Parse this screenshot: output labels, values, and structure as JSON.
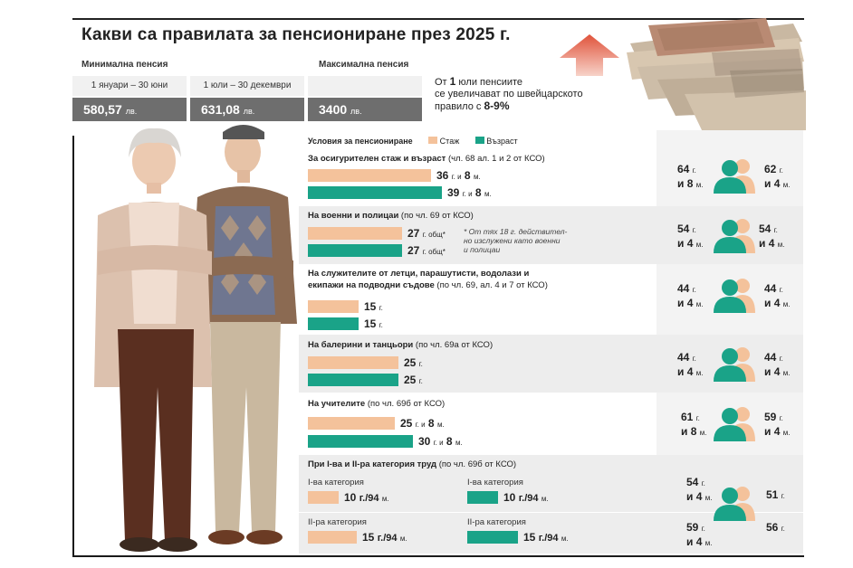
{
  "title": "Какви са правилата за пенсиониране през 2025 г.",
  "min_pension": {
    "label": "Минимална пенсия",
    "periods": [
      {
        "period": "1 януари – 30 юни",
        "value": "580,57",
        "unit": "лв."
      },
      {
        "period": "1 юли – 30 декември",
        "value": "631,08",
        "unit": "лв."
      }
    ]
  },
  "max_pension": {
    "label": "Максимална пенсия",
    "value": "3400",
    "unit": "лв."
  },
  "note": {
    "prefix": "От",
    "num": "1",
    "text1": "юли пенсиите",
    "text2": "се увеличават по швейцарското",
    "text3": "правило с",
    "percent": "8-9%"
  },
  "legend": {
    "title": "Условия за пенсиониране",
    "stazh": "Стаж",
    "vazrast": "Възраст"
  },
  "sections": [
    {
      "title": "За осигурителен стаж и възраст",
      "ref": "(чл. 68 ал. 1 и 2 от КСО)",
      "stazh": {
        "a": "36",
        "au": "г. и",
        "b": "8",
        "bu": "м."
      },
      "vazrast": {
        "a": "39",
        "au": "г. и",
        "b": "8",
        "bu": "м."
      },
      "age_f": {
        "y": "64",
        "yu": "г.",
        "m": "и 8",
        "mu": "м."
      },
      "age_m": {
        "y": "62",
        "yu": "г.",
        "m": "и 4",
        "mu": "м."
      }
    },
    {
      "title": "На военни и полицаи",
      "ref": "(по чл. 69 от КСО)",
      "stazh": {
        "a": "27",
        "au": "г. общ*"
      },
      "vazrast": {
        "a": "27",
        "au": "г. общ*"
      },
      "footnote": [
        "* От тях 18 г. действител-",
        "но изслужени като военни",
        "и полицаи"
      ],
      "age_f": {
        "y": "54",
        "yu": "г.",
        "m": "и 4",
        "mu": "м."
      },
      "age_m": {
        "y": "54",
        "yu": "г.",
        "m": "и 4",
        "mu": "м."
      }
    },
    {
      "title": "На служителите от летци, парашутисти, водолази и",
      "title2": "екипажи на подводни съдове",
      "ref": "(по чл. 69, ал. 4 и 7 от КСО)",
      "stazh": {
        "a": "15",
        "au": "г."
      },
      "vazrast": {
        "a": "15",
        "au": "г."
      },
      "age_f": {
        "y": "44",
        "yu": "г.",
        "m": "и 4",
        "mu": "м."
      },
      "age_m": {
        "y": "44",
        "yu": "г.",
        "m": "и 4",
        "mu": "м."
      }
    },
    {
      "title": "На балерини и танцьори",
      "ref": "(по чл. 69а от КСО)",
      "stazh": {
        "a": "25",
        "au": "г."
      },
      "vazrast": {
        "a": "25",
        "au": "г."
      },
      "age_f": {
        "y": "44",
        "yu": "г.",
        "m": "и 4",
        "mu": "м."
      },
      "age_m": {
        "y": "44",
        "yu": "г.",
        "m": "и 4",
        "mu": "м."
      }
    },
    {
      "title": "На учителите",
      "ref": "(по чл. 69б от КСО)",
      "stazh": {
        "a": "25",
        "au": "г. и",
        "b": "8",
        "bu": "м."
      },
      "vazrast": {
        "a": "30",
        "au": "г. и",
        "b": "8",
        "bu": "м."
      },
      "age_f": {
        "y": "61",
        "yu": "г.",
        "m": "и 8",
        "mu": "м."
      },
      "age_m": {
        "y": "59",
        "yu": "г.",
        "m": "и 4",
        "mu": "м."
      }
    },
    {
      "title": "При I-ва и II-ра категория труд",
      "ref": "(по чл. 69б от КСО)",
      "cat1": {
        "label": "I-ва категория",
        "stazh": "10",
        "stazh_u": "г./94",
        "stazh_m": "м.",
        "vazrast": "10",
        "vazrast_u": "г./94",
        "vazrast_m": "м."
      },
      "cat2": {
        "label": "II-ра категория",
        "stazh": "15",
        "stazh_u": "г./94",
        "stazh_m": "м.",
        "vazrast": "15",
        "vazrast_u": "г./94",
        "vazrast_m": "м."
      },
      "age1_f": {
        "y": "54",
        "yu": "г.",
        "m": "и 4",
        "mu": "м."
      },
      "age1_m": {
        "y": "51",
        "yu": "г."
      },
      "age2_f": {
        "y": "59",
        "yu": "г.",
        "m": "и 4",
        "mu": "м."
      },
      "age2_m": {
        "y": "56",
        "yu": "г."
      }
    }
  ],
  "colors": {
    "stazh": "#f4c29b",
    "vazrast": "#1aa388",
    "gray_band": "#ededed"
  }
}
